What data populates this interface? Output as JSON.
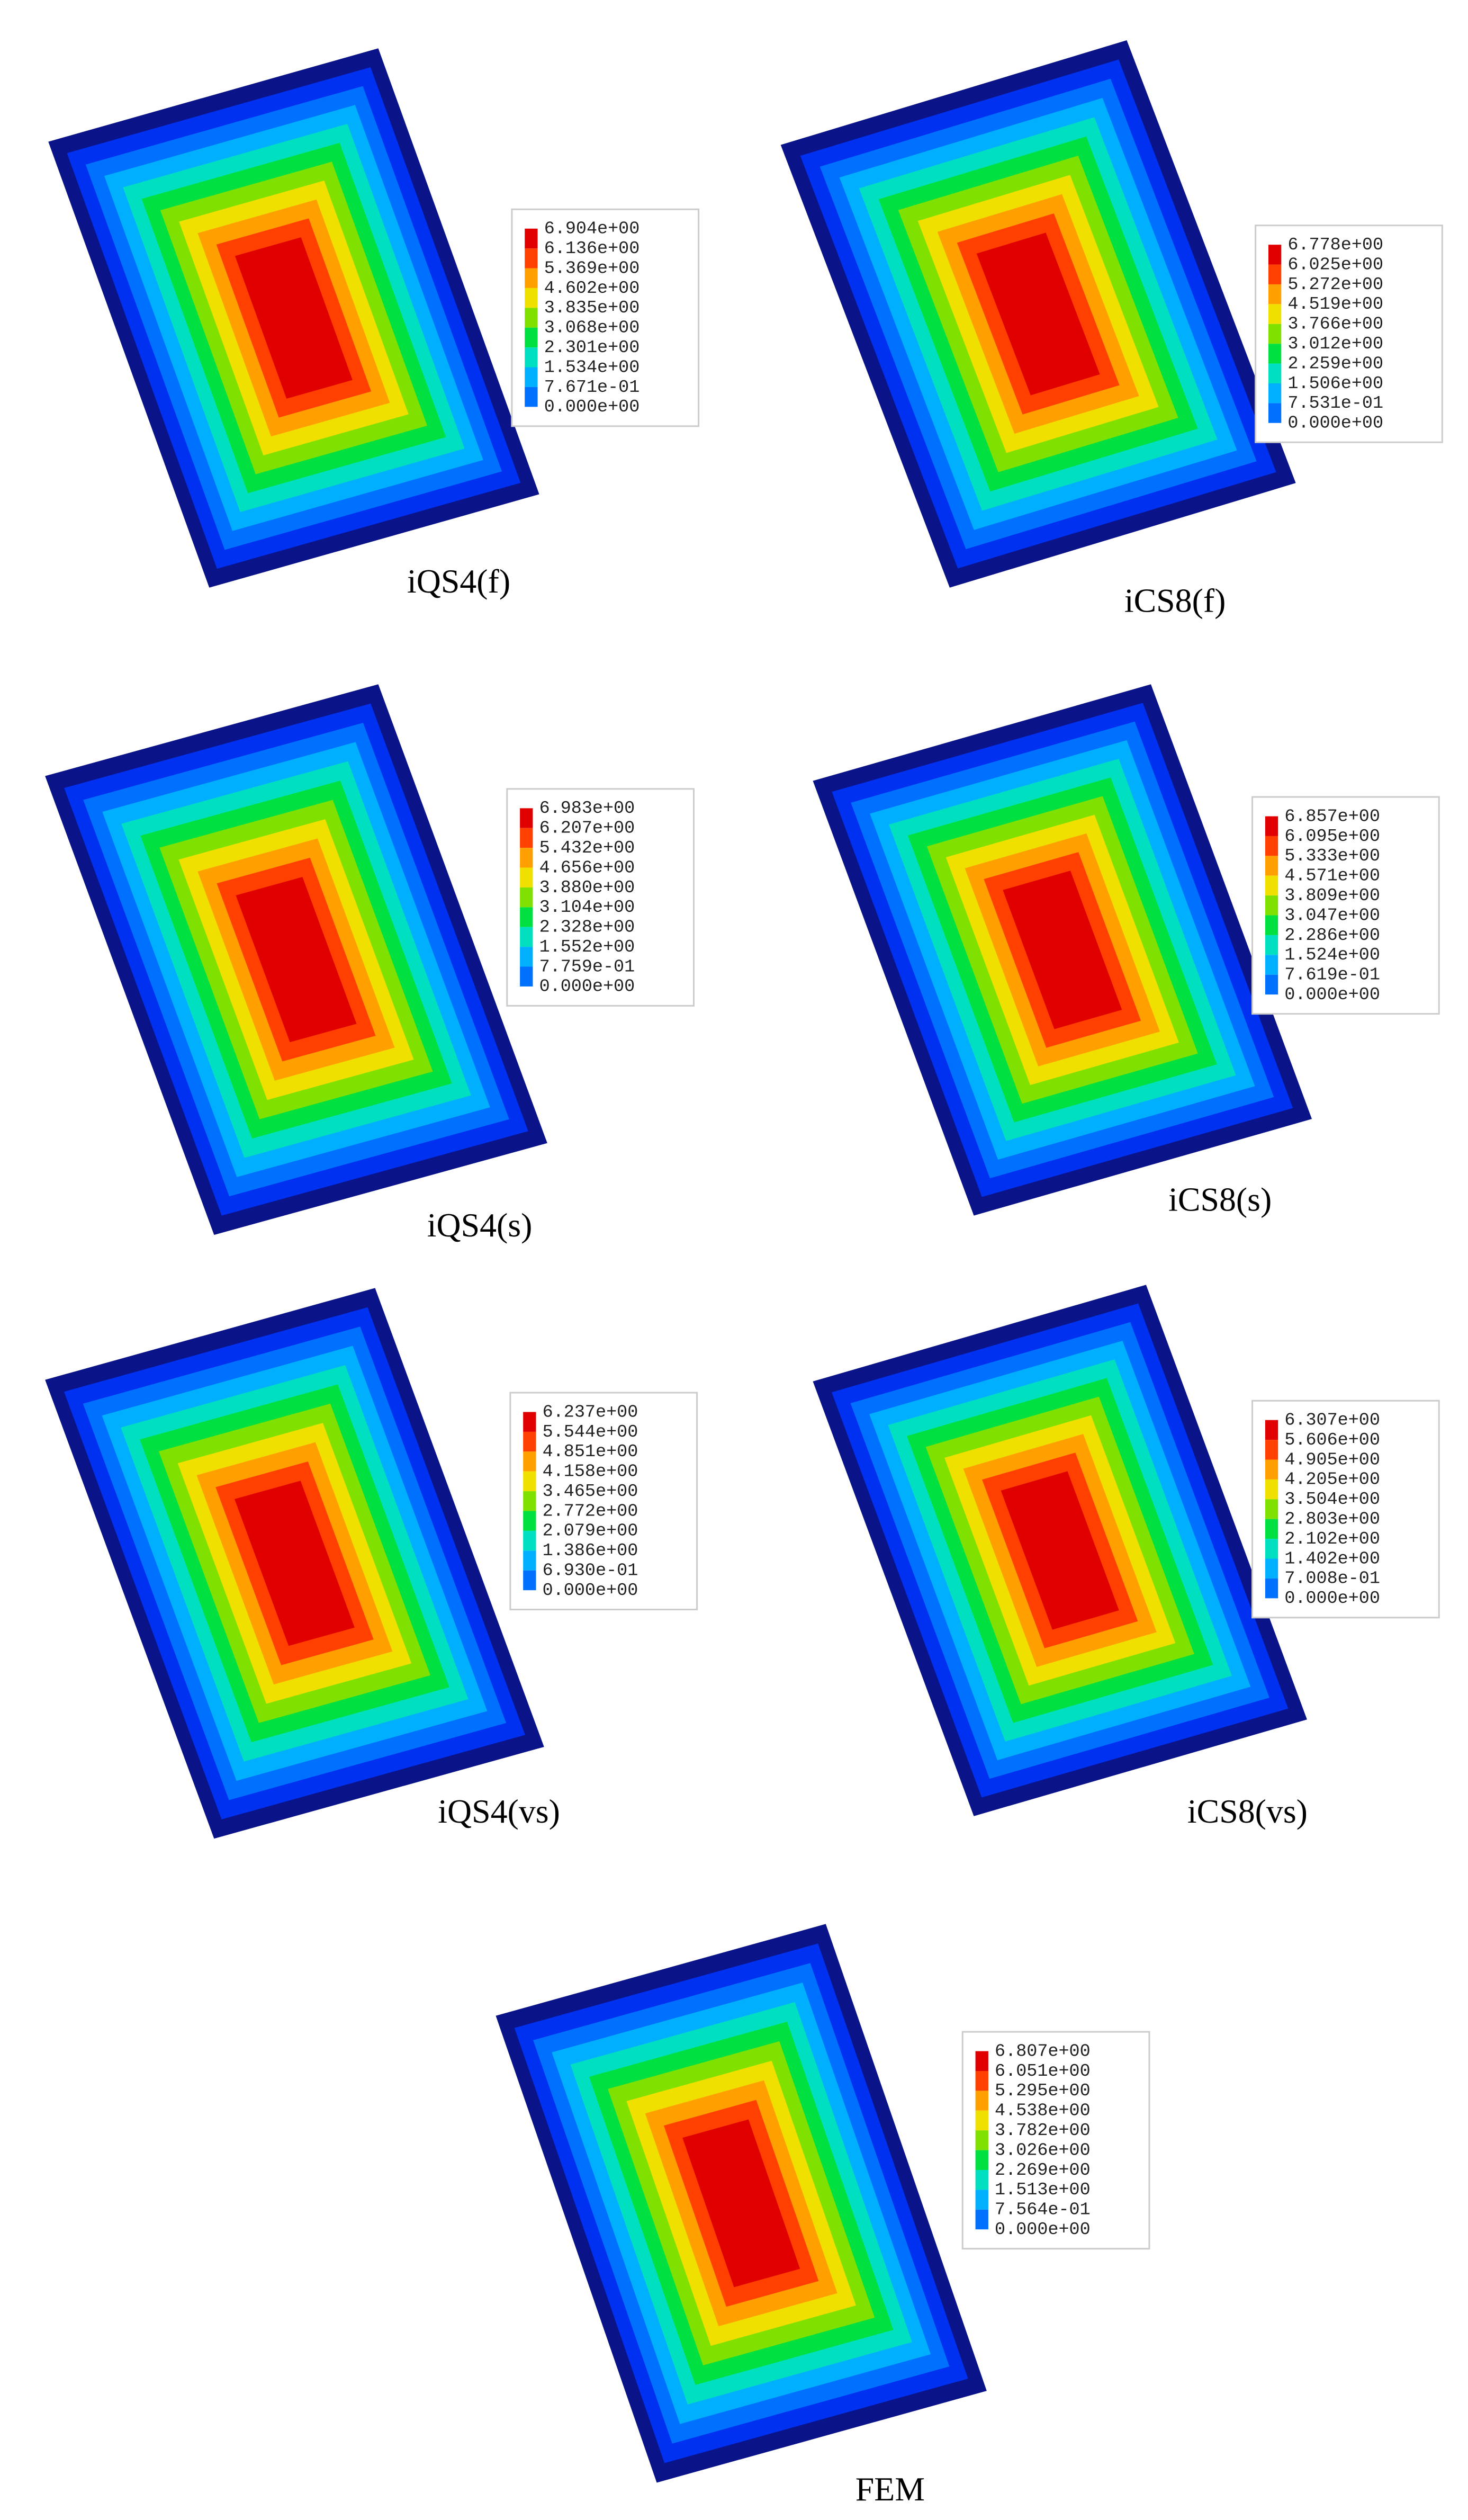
{
  "panels": [
    {
      "label": "iQS4(f)",
      "legend": [
        "6.904e+00",
        "6.136e+00",
        "5.369e+00",
        "4.602e+00",
        "3.835e+00",
        "3.068e+00",
        "2.301e+00",
        "1.534e+00",
        "7.671e-01",
        "0.000e+00"
      ]
    },
    {
      "label": "iCS8(f)",
      "legend": [
        "6.778e+00",
        "6.025e+00",
        "5.272e+00",
        "4.519e+00",
        "3.766e+00",
        "3.012e+00",
        "2.259e+00",
        "1.506e+00",
        "7.531e-01",
        "0.000e+00"
      ]
    },
    {
      "label": "iQS4(s)",
      "legend": [
        "6.983e+00",
        "6.207e+00",
        "5.432e+00",
        "4.656e+00",
        "3.880e+00",
        "3.104e+00",
        "2.328e+00",
        "1.552e+00",
        "7.759e-01",
        "0.000e+00"
      ]
    },
    {
      "label": "iCS8(s)",
      "legend": [
        "6.857e+00",
        "6.095e+00",
        "5.333e+00",
        "4.571e+00",
        "3.809e+00",
        "3.047e+00",
        "2.286e+00",
        "1.524e+00",
        "7.619e-01",
        "0.000e+00"
      ]
    },
    {
      "label": "iQS4(vs)",
      "legend": [
        "6.237e+00",
        "5.544e+00",
        "4.851e+00",
        "4.158e+00",
        "3.465e+00",
        "2.772e+00",
        "2.079e+00",
        "1.386e+00",
        "6.930e-01",
        "0.000e+00"
      ]
    },
    {
      "label": "iCS8(vs)",
      "legend": [
        "6.307e+00",
        "5.606e+00",
        "4.905e+00",
        "4.205e+00",
        "3.504e+00",
        "2.803e+00",
        "2.102e+00",
        "1.402e+00",
        "7.008e-01",
        "0.000e+00"
      ]
    },
    {
      "label": "FEM",
      "legend": [
        "6.807e+00",
        "6.051e+00",
        "5.295e+00",
        "4.538e+00",
        "3.782e+00",
        "3.026e+00",
        "2.269e+00",
        "1.513e+00",
        "7.564e-01",
        "0.000e+00"
      ]
    }
  ]
}
